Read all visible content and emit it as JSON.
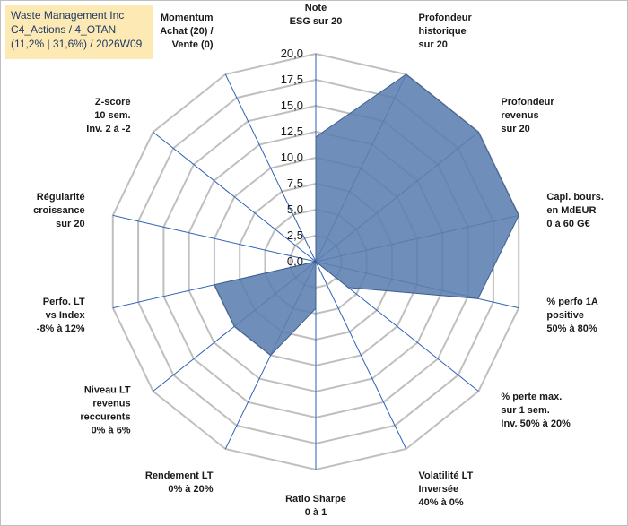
{
  "title_box": {
    "line1": "Waste Management Inc",
    "line2": "C4_Actions / 4_OTAN",
    "line3": "(11,2% | 31,6%) / 2026W09"
  },
  "chart_data": {
    "type": "radar",
    "rmin": 0,
    "rmax": 20,
    "ticks": [
      "0,0",
      "2,5",
      "5,0",
      "7,5",
      "10,0",
      "12,5",
      "15,0",
      "17,5",
      "20,0"
    ],
    "axes": [
      [
        "Note",
        "ESG sur 20"
      ],
      [
        "Profondeur",
        "historique",
        "sur 20"
      ],
      [
        "Profondeur",
        "revenus",
        "sur 20"
      ],
      [
        "Capi. bours.",
        "en MdEUR",
        "0 à 60 G€"
      ],
      [
        "% perfo 1A",
        "positive",
        "50% à 80%"
      ],
      [
        "% perte max.",
        "sur 1 sem.",
        "Inv. 50% à 20%"
      ],
      [
        "Volatilité LT",
        "Inversée",
        "40% à 0%"
      ],
      [
        "Ratio Sharpe",
        "0 à 1"
      ],
      [
        "Rendement LT",
        "0% à 20%"
      ],
      [
        "Niveau LT",
        "revenus",
        "reccurents",
        "0% à 6%"
      ],
      [
        "Perfo. LT",
        "vs Index",
        "-8% à 12%"
      ],
      [
        "Régularité",
        "croissance",
        "sur 20"
      ],
      [
        "Z-score",
        "10 sem.",
        "Inv. 2 à -2"
      ],
      [
        "Momentum",
        "Achat (20) /",
        "Vente (0)"
      ]
    ],
    "values": [
      12,
      20,
      20,
      20,
      16,
      4,
      0,
      4.5,
      10,
      10,
      10,
      0,
      0,
      0
    ],
    "grid": true,
    "fill_color": "#5b7fb1",
    "edge_color": "#3d5f8f",
    "spoke_color": "#2e62b7",
    "grid_color": "#bfbfbf"
  }
}
